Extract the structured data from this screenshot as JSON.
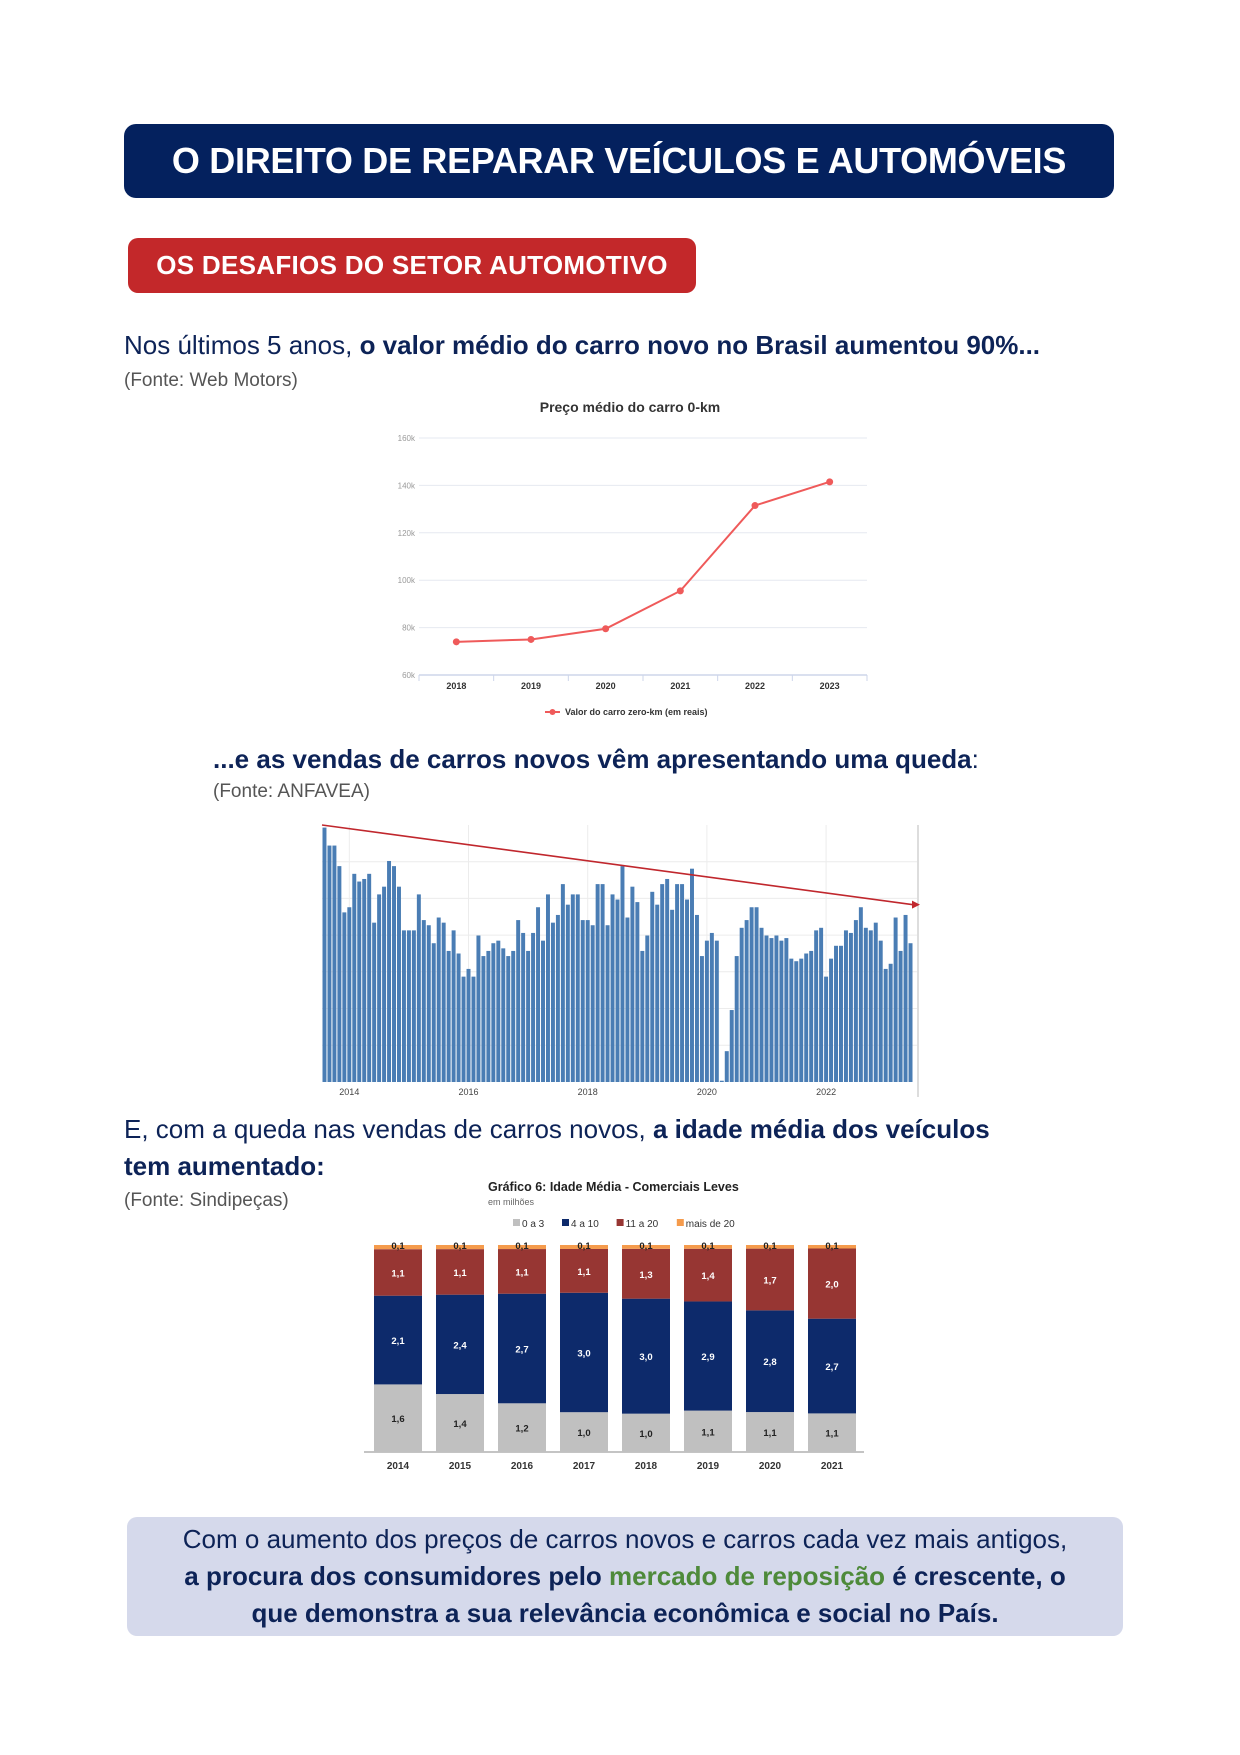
{
  "header": {
    "title": "O DIREITO DE REPARAR VEÍCULOS E AUTOMÓVEIS",
    "section": "OS DESAFIOS DO SETOR AUTOMOTIVO"
  },
  "block1": {
    "text_regular": "Nos últimos 5 anos, ",
    "text_bold": "o valor médio do carro novo no Brasil aumentou 90%...",
    "source": "(Fonte: Web Motors)"
  },
  "block2": {
    "text_bold": "...e as vendas de carros novos vêm apresentando uma queda",
    "text_regular": ":",
    "source": "(Fonte: ANFAVEA)"
  },
  "block3": {
    "text_regular": "E, com a queda nas vendas de carros novos, ",
    "text_bold_1": "a idade média dos veículos",
    "text_bold_2": "tem aumentado:",
    "source": "(Fonte: Sindipeças)"
  },
  "summary": {
    "line1": "Com o aumento dos preços de carros novos e carros cada vez mais antigos,",
    "line2_bold_a": "a procura dos consumidores pelo ",
    "line2_green": "mercado de reposição",
    "line2_bold_b": " é crescente, o",
    "line3_bold": "que demonstra a sua relevância econômica e social no País."
  },
  "colors": {
    "navy": "#04215e",
    "red": "#c3282a",
    "green": "#4e8a3a",
    "box": "#d5d9eb"
  },
  "chart_data": [
    {
      "type": "line",
      "title": "Preço médio do carro 0-km",
      "x": [
        "2018",
        "2019",
        "2020",
        "2021",
        "2022",
        "2023"
      ],
      "series": [
        {
          "name": "Valor do carro zero-km (em reais)",
          "values": [
            74000,
            75000,
            79500,
            95500,
            131500,
            141500
          ],
          "color": "#ef5a5a"
        }
      ],
      "yticks": [
        60000,
        80000,
        100000,
        120000,
        140000,
        160000
      ],
      "ytick_labels": [
        "60k",
        "80k",
        "100k",
        "120k",
        "140k",
        "160k"
      ],
      "ylim": [
        60000,
        160000
      ],
      "grid": true,
      "legend": "bottom"
    },
    {
      "type": "bar",
      "title": "",
      "ylabel": "",
      "note": "relative monthly sales, no y-axis labels",
      "values": [
        0.99,
        0.92,
        0.92,
        0.84,
        0.66,
        0.68,
        0.81,
        0.78,
        0.79,
        0.81,
        0.62,
        0.73,
        0.76,
        0.86,
        0.84,
        0.76,
        0.59,
        0.59,
        0.59,
        0.73,
        0.63,
        0.61,
        0.54,
        0.64,
        0.62,
        0.51,
        0.59,
        0.5,
        0.41,
        0.44,
        0.41,
        0.57,
        0.49,
        0.51,
        0.54,
        0.55,
        0.52,
        0.49,
        0.51,
        0.63,
        0.58,
        0.51,
        0.58,
        0.68,
        0.55,
        0.73,
        0.62,
        0.65,
        0.77,
        0.69,
        0.73,
        0.73,
        0.63,
        0.63,
        0.61,
        0.77,
        0.77,
        0.61,
        0.73,
        0.71,
        0.84,
        0.64,
        0.76,
        0.7,
        0.51,
        0.57,
        0.74,
        0.69,
        0.77,
        0.79,
        0.67,
        0.77,
        0.77,
        0.71,
        0.83,
        0.65,
        0.49,
        0.55,
        0.58,
        0.55,
        0.005,
        0.12,
        0.28,
        0.49,
        0.6,
        0.63,
        0.68,
        0.68,
        0.6,
        0.57,
        0.56,
        0.57,
        0.55,
        0.56,
        0.48,
        0.47,
        0.48,
        0.5,
        0.51,
        0.59,
        0.6,
        0.41,
        0.48,
        0.53,
        0.53,
        0.59,
        0.58,
        0.63,
        0.68,
        0.6,
        0.59,
        0.62,
        0.55,
        0.44,
        0.46,
        0.64,
        0.51,
        0.65,
        0.54
      ],
      "xtick_labels": [
        "2014",
        "2016",
        "2018",
        "2020",
        "2022"
      ],
      "xtick_index": [
        5.5,
        29.5,
        53.5,
        77.5,
        101.5
      ],
      "trend": {
        "start": 1.0,
        "end": 0.69,
        "color": "#c0272d"
      },
      "bar_color": "#4a7db4",
      "ylim": [
        0,
        1
      ],
      "grid": true
    },
    {
      "type": "bar",
      "stacked": "percent",
      "title": "Gráfico 6: Idade Média - Comerciais Leves",
      "subtitle": "em milhões",
      "categories": [
        "2014",
        "2015",
        "2016",
        "2017",
        "2018",
        "2019",
        "2020",
        "2021"
      ],
      "series": [
        {
          "name": "0 a 3",
          "values": [
            1.6,
            1.4,
            1.2,
            1.0,
            1.0,
            1.1,
            1.1,
            1.1
          ],
          "labels": [
            "1,6",
            "1,4",
            "1,2",
            "1,0",
            "1,0",
            "1,1",
            "1,1",
            "1,1"
          ],
          "color": "#c0c0c0",
          "text": "#222"
        },
        {
          "name": "4 a 10",
          "values": [
            2.1,
            2.4,
            2.7,
            3.0,
            3.0,
            2.9,
            2.8,
            2.7
          ],
          "labels": [
            "2,1",
            "2,4",
            "2,7",
            "3,0",
            "3,0",
            "2,9",
            "2,8",
            "2,7"
          ],
          "color": "#0d2a6b",
          "text": "#fff"
        },
        {
          "name": "11 a 20",
          "values": [
            1.1,
            1.1,
            1.1,
            1.1,
            1.3,
            1.4,
            1.7,
            2.0
          ],
          "labels": [
            "1,1",
            "1,1",
            "1,1",
            "1,1",
            "1,3",
            "1,4",
            "1,7",
            "2,0"
          ],
          "color": "#973633",
          "text": "#fff"
        },
        {
          "name": "mais de 20",
          "values": [
            0.1,
            0.1,
            0.1,
            0.1,
            0.1,
            0.1,
            0.1,
            0.1
          ],
          "labels": [
            "0,1",
            "0,1",
            "0,1",
            "0,1",
            "0,1",
            "0,1",
            "0,1",
            "0,1"
          ],
          "color": "#f59b4c",
          "text": "#222"
        }
      ],
      "legend": "top"
    }
  ]
}
